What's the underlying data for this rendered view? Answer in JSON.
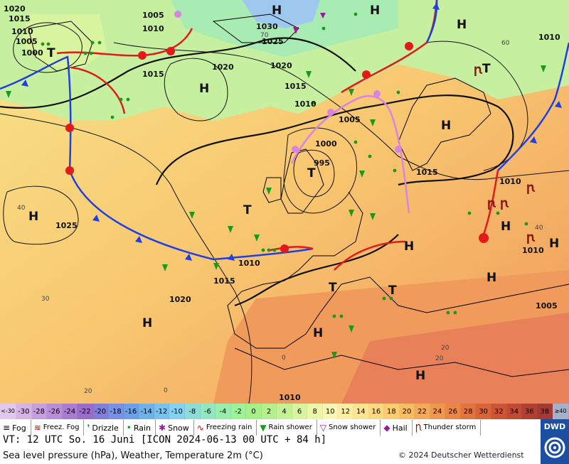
{
  "map": {
    "pressure_labels": [
      "1020",
      "1015",
      "1010",
      "1005",
      "1000",
      "1005",
      "1010",
      "1015",
      "1020",
      "1030",
      "1025",
      "1020",
      "1015",
      "1010",
      "1005",
      "1000",
      "995",
      "1015",
      "1010",
      "1010",
      "1015",
      "1020",
      "1025",
      "1010",
      "1010",
      "1005",
      "1010"
    ],
    "pressure_centers": [
      "H",
      "H",
      "H",
      "H",
      "H",
      "H",
      "H",
      "H",
      "H",
      "H",
      "H",
      "H",
      "H",
      "T",
      "T",
      "T",
      "T",
      "T",
      "T"
    ],
    "temp_isolines": [
      "40",
      "30",
      "20",
      "60",
      "70",
      "0",
      "40",
      "20",
      "0",
      "20"
    ],
    "colors": {
      "cold_front": "#1f3fe0",
      "warm_front": "#e21a1a",
      "occlusion": "#d884e0",
      "isobar": "#111111",
      "coast": "#000000",
      "border": "#8a1a1a"
    }
  },
  "temperature_scale": {
    "unit": "°C",
    "low_end": "<-30",
    "high_end": "≥40",
    "values": [
      "-30",
      "-28",
      "-26",
      "-24",
      "-22",
      "-20",
      "-18",
      "-16",
      "-14",
      "-12",
      "-10",
      "-8",
      "-6",
      "-4",
      "-2",
      "0",
      "2",
      "4",
      "6",
      "8",
      "10",
      "12",
      "14",
      "16",
      "18",
      "20",
      "22",
      "24",
      "26",
      "28",
      "30",
      "32",
      "34",
      "36",
      "38"
    ],
    "colors": [
      "#d7b4e6",
      "#c6a0dc",
      "#b88ed6",
      "#a97dd0",
      "#9a6dca",
      "#7f7fd8",
      "#7a90e0",
      "#6aa0e6",
      "#6eb2ea",
      "#7ac2ee",
      "#86d0f0",
      "#8edcd8",
      "#93e6c2",
      "#98eeaa",
      "#9ef29a",
      "#a6f08a",
      "#b6f08e",
      "#c6f296",
      "#d8f49e",
      "#ebf6a8",
      "#fbf6b4",
      "#fdeea2",
      "#fde490",
      "#fcd880",
      "#fbcc70",
      "#f8bc62",
      "#f4aa58",
      "#f0984e",
      "#ea8646",
      "#e2743e",
      "#d86438",
      "#cc5634",
      "#c04a32",
      "#b04032",
      "#a33a34"
    ]
  },
  "legend": [
    {
      "icon": "fog-icon",
      "label": "Fog"
    },
    {
      "icon": "freezing-fog-icon",
      "label": "Freez. Fog"
    },
    {
      "icon": "drizzle-icon",
      "label": "Drizzle"
    },
    {
      "icon": "rain-icon",
      "label": "Rain"
    },
    {
      "icon": "snow-icon",
      "label": "Snow"
    },
    {
      "icon": "freezing-rain-icon",
      "label": "Freezing rain"
    },
    {
      "icon": "rain-shower-icon",
      "label": "Rain shower"
    },
    {
      "icon": "snow-shower-icon",
      "label": "Snow shower"
    },
    {
      "icon": "hail-icon",
      "label": "Hail"
    },
    {
      "icon": "thunderstorm-icon",
      "label": "Thunder storm"
    }
  ],
  "info": {
    "valid_time": "VT: 12 UTC So.  16 Juni [ICON 2024-06-13  00 UTC + 84 h]",
    "description": "Sea level pressure (hPa), Weather, Temperature 2m (°C)",
    "copyright": "© 2024 Deutscher Wetterdienst",
    "logo": "DWD"
  }
}
